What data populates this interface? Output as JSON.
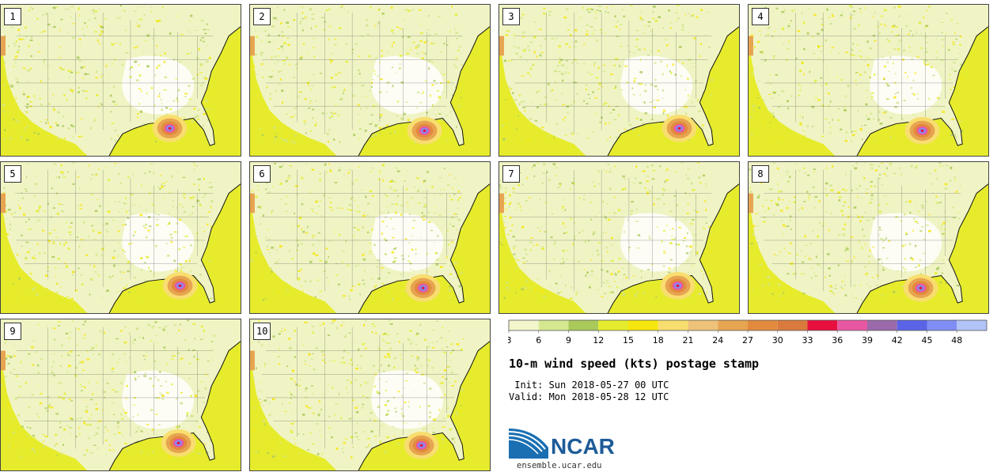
{
  "panels": [
    {
      "label": "1"
    },
    {
      "label": "2"
    },
    {
      "label": "3"
    },
    {
      "label": "4"
    },
    {
      "label": "5"
    },
    {
      "label": "6"
    },
    {
      "label": "7"
    },
    {
      "label": "8"
    },
    {
      "label": "9"
    },
    {
      "label": "10"
    }
  ],
  "colorbar": {
    "ticks": [
      "3",
      "6",
      "9",
      "12",
      "15",
      "18",
      "21",
      "24",
      "27",
      "30",
      "33",
      "36",
      "39",
      "42",
      "45",
      "48"
    ],
    "colors": [
      "#f3f6cb",
      "#d6e88f",
      "#a9c95b",
      "#e5ec2d",
      "#f6e60f",
      "#f8de6f",
      "#efc27a",
      "#e7a451",
      "#e28a3d",
      "#da7a3c",
      "#e8103f",
      "#e857a2",
      "#9a6aab",
      "#5a64e6",
      "#7f8ef4",
      "#b2c3f7"
    ]
  },
  "title": "10-m wind speed (kts) postage stamp",
  "init": " Init: Sun 2018-05-27 00 UTC",
  "valid": "Valid: Mon 2018-05-28 12 UTC",
  "logo": {
    "text": "NCAR",
    "url": "ensemble.ucar.edu"
  }
}
